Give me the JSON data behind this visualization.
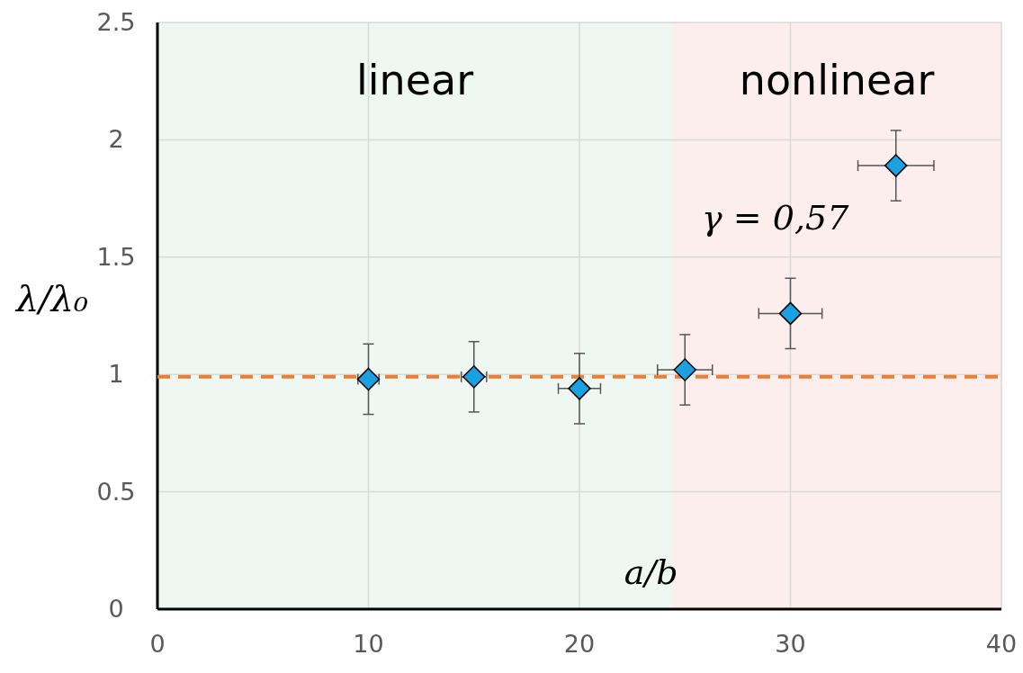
{
  "chart_data": {
    "type": "scatter",
    "xlabel": "a/b",
    "ylabel": "λ/λ₀",
    "x": [
      10,
      15,
      20,
      25,
      30,
      35
    ],
    "series": [
      {
        "color": "#1ba1e2",
        "values": [
          0.98,
          0.99,
          0.94,
          1.02,
          1.26,
          1.89
        ],
        "errors": [
          0.15,
          0.15,
          0.15,
          0.15,
          0.15,
          0.15
        ],
        "xerrors": [
          0.5,
          0.6,
          1,
          1.3,
          1.5,
          1.8
        ]
      }
    ],
    "xlim": [
      0,
      40
    ],
    "xticks": [
      0,
      10,
      20,
      30,
      40
    ],
    "ylim": [
      0,
      2.5
    ],
    "yticks": [
      0,
      0.5,
      1,
      1.5,
      2,
      2.5
    ],
    "grid": true,
    "marker": "diamond",
    "ref_lines": [
      {
        "axis": "y",
        "value": 0.99,
        "color": "#ed7d31",
        "line_style": "dashed"
      }
    ],
    "bands": [
      {
        "axis": "x",
        "from": 0,
        "to": 24.4,
        "label": "linear",
        "color": "#eef7f1"
      },
      {
        "axis": "x",
        "from": 24.4,
        "to": 40,
        "label": "nonlinear",
        "color": "#fdeeee"
      }
    ],
    "annotations": [
      "γ = 0,57"
    ]
  }
}
